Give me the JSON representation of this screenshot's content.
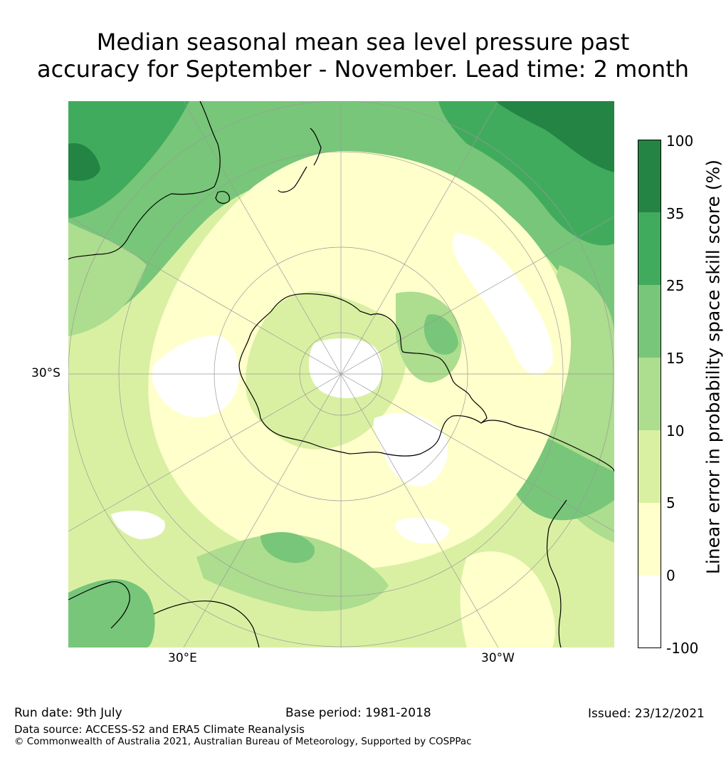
{
  "title": {
    "line1": "Median seasonal mean sea level pressure past",
    "line2": "accuracy for September - November. Lead time: 2 month"
  },
  "map": {
    "projection": "south-polar-stereographic",
    "lat_labels": [
      "30°S"
    ],
    "lon_labels": [
      "30°E",
      "30°W"
    ],
    "colors": {
      "c_neg100_0": "#ffffff",
      "c_0_5": "#ffffcc",
      "c_5_10": "#d9f0a3",
      "c_10_15": "#addd8e",
      "c_15_25": "#78c679",
      "c_25_35": "#41ab5d",
      "c_35_100": "#238443",
      "coast": "#000000",
      "grid": "#9a9a9a"
    }
  },
  "colorbar": {
    "label": "Linear error in probability space skill score (%)",
    "ticks": [
      "100",
      "35",
      "25",
      "15",
      "10",
      "5",
      "0",
      "-100"
    ],
    "bins": [
      {
        "range": "35 to 100",
        "color": "#238443"
      },
      {
        "range": "25 to 35",
        "color": "#41ab5d"
      },
      {
        "range": "15 to 25",
        "color": "#78c679"
      },
      {
        "range": "10 to 15",
        "color": "#addd8e"
      },
      {
        "range": "5 to 10",
        "color": "#d9f0a3"
      },
      {
        "range": "0 to 5",
        "color": "#ffffcc"
      },
      {
        "range": "-100 to 0",
        "color": "#ffffff"
      }
    ]
  },
  "footer": {
    "run_date": "Run date: 9th July",
    "base_period": "Base period: 1981-2018",
    "issued": "Issued: 23/12/2021",
    "data_source": "Data source: ACCESS-S2 and ERA5 Climate Reanalysis",
    "copyright": "© Commonwealth of Australia 2021, Australian Bureau of Meteorology, Supported by COSPPac"
  }
}
